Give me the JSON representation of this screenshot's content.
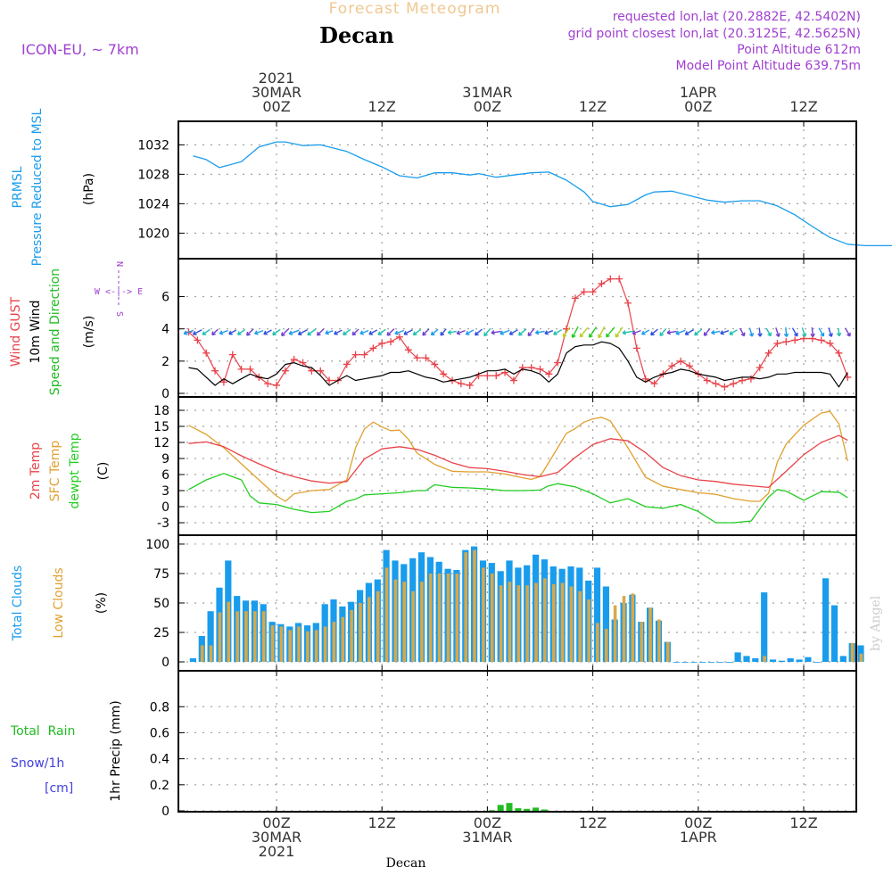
{
  "header": {
    "title": "Forecast Meteogram",
    "location": "Decan",
    "model": "ICON-EU, ~ 7km",
    "requested": "requested lon,lat (20.2882E, 42.5402N)",
    "grid_point": "grid point closest lon,lat (20.3125E, 42.5625N)",
    "point_altitude": "Point Altitude 612m",
    "model_altitude": "Model Point Altitude 639.75m",
    "footer_location": "Decan",
    "credit": "by Angel"
  },
  "time_axis": {
    "hour_offsets": [
      0,
      12,
      24,
      36,
      48,
      60
    ],
    "top_labels": [
      [
        "2021",
        "30MAR",
        "00Z"
      ],
      [
        "",
        "",
        "12Z"
      ],
      [
        "",
        "31MAR",
        "00Z"
      ],
      [
        "",
        "",
        "12Z"
      ],
      [
        "",
        "1APR",
        "00Z"
      ],
      [
        "",
        "",
        "12Z"
      ]
    ],
    "bottom_labels": [
      [
        "00Z",
        "30MAR",
        "2021"
      ],
      [
        "12Z",
        "",
        ""
      ],
      [
        "00Z",
        "31MAR",
        ""
      ],
      [
        "12Z",
        "",
        ""
      ],
      [
        "00Z",
        "1APR",
        ""
      ],
      [
        "12Z",
        "",
        ""
      ]
    ]
  },
  "panel_titles": {
    "pressure": [
      "PRMSL",
      "Pressure Reduced to MSL",
      "(hPa)"
    ],
    "wind": [
      "Wind GUST",
      "10m Wind",
      "Speed and Direction",
      "(m/s)"
    ],
    "compass": [
      "N",
      "W <-|-> E",
      "S"
    ],
    "temp": [
      "2m Temp",
      "SFC Temp",
      "dewpt Temp",
      "(C)"
    ],
    "clouds": [
      "Total Clouds",
      "Low Clouds",
      "(%)"
    ],
    "precip": [
      "Total  Rain",
      "Snow/1h",
      "[cm]",
      "1hr Precip (mm)"
    ]
  },
  "colors": {
    "pressure": "#1a9cec",
    "gust": "#e8434a",
    "wind": "#000000",
    "wind_dir": "#22bb22",
    "t2m": "#e8434a",
    "sfc": "#e0a030",
    "dewpt": "#22cc22",
    "total_clouds": "#1a9cec",
    "low_clouds": "#d8a848",
    "rain": "#22bb22",
    "snow": "#4040e0",
    "title_faint": "#f0c890",
    "purple": "#a040d0",
    "grid": "#a0a0a0"
  },
  "chart_data": [
    {
      "id": "pressure",
      "type": "line",
      "ylabel": "(hPa)",
      "yticks": [
        1020,
        1024,
        1028,
        1032
      ],
      "ylim": [
        1017.5,
        1033.5
      ],
      "series": [
        {
          "name": "PRMSL",
          "x": [
            -9.5,
            -8,
            -6.5,
            -4,
            -2,
            0,
            1,
            3,
            5,
            7,
            8,
            10,
            12,
            14,
            16,
            18,
            20,
            22,
            23,
            25,
            27,
            29,
            31,
            33,
            35,
            36,
            38,
            40,
            42,
            43,
            45,
            47,
            49,
            51,
            53,
            55,
            57,
            59,
            61,
            63,
            65,
            67,
            69,
            71,
            73,
            74
          ],
          "y": [
            1030.5,
            1030,
            1028.9,
            1029.7,
            1031.7,
            1032.4,
            1032.4,
            1031.9,
            1032,
            1031.4,
            1031.1,
            1030,
            1029,
            1027.8,
            1027.5,
            1028.2,
            1028.2,
            1027.9,
            1028.1,
            1027.6,
            1027.9,
            1028.2,
            1028.3,
            1027.2,
            1025.6,
            1024.3,
            1023.6,
            1023.9,
            1025.2,
            1025.6,
            1025.7,
            1025.1,
            1024.5,
            1024.2,
            1024.4,
            1024.4,
            1023.7,
            1022.5,
            1020.9,
            1019.4,
            1018.5,
            1018.3,
            1018.3,
            1018.3,
            1018.3,
            1018.4
          ]
        }
      ]
    },
    {
      "id": "wind",
      "type": "line",
      "ylabel": "(m/s)",
      "yticks": [
        0,
        2,
        4,
        6
      ],
      "ylim": [
        0,
        7.8
      ],
      "series": [
        {
          "name": "Wind GUST",
          "x": [
            -10,
            -9,
            -8,
            -7,
            -6,
            -5,
            -4,
            -3,
            -2,
            -1,
            0,
            1,
            2,
            3,
            4,
            5,
            6,
            7,
            8,
            9,
            10,
            11,
            12,
            13,
            14,
            15,
            16,
            17,
            18,
            19,
            20,
            21,
            22,
            23,
            24,
            25,
            26,
            27,
            28,
            29,
            30,
            31,
            32,
            33,
            34,
            35,
            36,
            37,
            38,
            39,
            40,
            41,
            42,
            43,
            44,
            45,
            46,
            47,
            48,
            49,
            50,
            51,
            52,
            53,
            54,
            55,
            56,
            57,
            58,
            59,
            60,
            61,
            62,
            63,
            64,
            65
          ],
          "y": [
            3.8,
            3.3,
            2.5,
            1.4,
            0.7,
            2.4,
            1.5,
            1.5,
            1,
            0.6,
            0.5,
            1.4,
            2.1,
            1.9,
            1.4,
            1.4,
            0.8,
            0.8,
            1.8,
            2.4,
            2.4,
            2.8,
            3.1,
            3.2,
            3.5,
            2.7,
            2.2,
            2.2,
            1.8,
            1.2,
            0.8,
            0.6,
            0.5,
            1.1,
            1.1,
            1.1,
            1.3,
            0.8,
            1.6,
            1.6,
            1.5,
            1.2,
            1.9,
            4,
            5.9,
            6.3,
            6.3,
            6.8,
            7.1,
            7.1,
            5.6,
            2.8,
            0.9,
            0.6,
            1.2,
            1.7,
            2,
            1.7,
            1.2,
            0.8,
            0.6,
            0.4,
            0.6,
            0.8,
            0.9,
            1.6,
            2.5,
            3.1,
            3.2,
            3.3,
            3.4,
            3.4,
            3.3,
            3.1,
            2.5,
            1
          ]
        },
        {
          "name": "10m Wind",
          "x": [
            -10,
            -9,
            -8,
            -7,
            -6,
            -5,
            -4,
            -3,
            -2,
            -1,
            0,
            1,
            2,
            3,
            4,
            5,
            6,
            7,
            8,
            9,
            10,
            11,
            12,
            13,
            14,
            15,
            16,
            17,
            18,
            19,
            20,
            21,
            22,
            23,
            24,
            25,
            26,
            27,
            28,
            29,
            30,
            31,
            32,
            33,
            34,
            35,
            36,
            37,
            38,
            39,
            40,
            41,
            42,
            43,
            44,
            45,
            46,
            47,
            48,
            49,
            50,
            51,
            52,
            53,
            54,
            55,
            56,
            57,
            58,
            59,
            60,
            61,
            62,
            63,
            64,
            65
          ],
          "y": [
            1.6,
            1.5,
            1,
            0.5,
            0.9,
            0.6,
            0.9,
            1.2,
            1,
            0.9,
            1.2,
            1.8,
            1.9,
            1.7,
            1.6,
            1.1,
            0.5,
            0.8,
            1.1,
            0.8,
            0.9,
            1,
            1.1,
            1.3,
            1.3,
            1.4,
            1.2,
            1,
            0.9,
            0.7,
            0.8,
            0.9,
            1,
            1.2,
            1.4,
            1.4,
            1.5,
            1.2,
            1.5,
            1.4,
            1.2,
            0.7,
            1.2,
            2.5,
            2.9,
            3,
            3,
            3.2,
            3.1,
            2.8,
            2,
            1,
            0.7,
            1,
            1.2,
            1.3,
            1.5,
            1.4,
            1.2,
            1.1,
            1,
            0.8,
            0.9,
            1,
            1,
            0.9,
            1,
            1.2,
            1.2,
            1.3,
            1.3,
            1.3,
            1.3,
            1.2,
            0.4,
            1.3
          ]
        }
      ]
    },
    {
      "id": "temp",
      "type": "line",
      "ylabel": "(C)",
      "yticks": [
        -3,
        0,
        3,
        6,
        9,
        12,
        15,
        18
      ],
      "ylim": [
        -4,
        19
      ],
      "series": [
        {
          "name": "2m Temp",
          "x": [
            -10,
            -8,
            -6,
            -4,
            -2,
            0,
            2,
            4,
            6,
            8,
            10,
            12,
            14,
            16,
            18,
            20,
            22,
            24,
            26,
            28,
            30,
            32,
            34,
            36,
            38,
            40,
            42,
            44,
            46,
            48,
            50,
            52,
            54,
            56,
            58,
            60,
            62,
            64,
            65
          ],
          "y": [
            11.8,
            12.1,
            11.2,
            9.5,
            8,
            6.6,
            5.6,
            4.8,
            4.4,
            4.7,
            8.9,
            10.8,
            11.2,
            10.7,
            9.6,
            8.2,
            7.3,
            7.1,
            6.6,
            6,
            5.6,
            6.4,
            9.2,
            11.6,
            12.7,
            12.3,
            10.1,
            7.3,
            5.8,
            5,
            4.7,
            4.2,
            3.9,
            3.6,
            6.6,
            9.7,
            12,
            13.3,
            12.4
          ]
        },
        {
          "name": "SFC Temp",
          "x": [
            -10,
            -8,
            -6,
            -4,
            -2,
            0,
            1,
            2,
            4,
            6,
            8,
            9,
            10,
            11,
            12,
            13,
            14,
            15,
            16,
            18,
            20,
            22,
            24,
            26,
            28,
            29,
            30,
            32,
            33,
            34,
            35,
            36,
            37,
            38,
            40,
            42,
            44,
            46,
            48,
            50,
            52,
            54,
            55,
            56,
            57,
            58,
            60,
            62,
            63,
            64,
            65
          ],
          "y": [
            15.2,
            13.5,
            11,
            8,
            5,
            2,
            1,
            2.4,
            3,
            3.2,
            5,
            11,
            14.5,
            15.8,
            14.9,
            14.2,
            14.3,
            12.6,
            10,
            7.9,
            6.6,
            6.5,
            6.5,
            6.1,
            5.4,
            5.1,
            5.6,
            11,
            13.7,
            14.6,
            15.8,
            16.4,
            16.7,
            16,
            11,
            5.5,
            3.8,
            3.2,
            2.6,
            2.3,
            1.5,
            1,
            1,
            2.5,
            8.3,
            11.7,
            15.2,
            17.5,
            17.8,
            15.5,
            8.5
          ]
        },
        {
          "name": "dewpt Temp",
          "x": [
            -10,
            -8,
            -6,
            -4,
            -3,
            -2,
            0,
            2,
            4,
            6,
            8,
            9,
            10,
            12,
            14,
            16,
            17,
            18,
            20,
            22,
            24,
            26,
            28,
            30,
            31,
            32,
            34,
            36,
            38,
            40,
            42,
            44,
            46,
            48,
            50,
            52,
            54,
            56,
            57,
            58,
            60,
            62,
            64,
            65
          ],
          "y": [
            3.2,
            5,
            6.2,
            5,
            2,
            0.7,
            0.4,
            -0.5,
            -1.1,
            -0.9,
            1,
            1.4,
            2.2,
            2.4,
            2.6,
            3,
            3,
            4.1,
            3.6,
            3.5,
            3.3,
            3,
            3,
            3.1,
            3.9,
            4.3,
            3.7,
            2.4,
            0.7,
            1.5,
            0,
            -0.3,
            0.4,
            -0.9,
            -3,
            -3,
            -2.7,
            1.8,
            3.2,
            2.9,
            1.2,
            2.8,
            2.7,
            1.7
          ]
        }
      ]
    },
    {
      "id": "clouds",
      "type": "bar",
      "ylabel": "(%)",
      "yticks": [
        0,
        25,
        50,
        75,
        100
      ],
      "ylim": [
        0,
        103
      ],
      "start_hour": -9.5,
      "step_hours": 1,
      "series": [
        {
          "name": "Total Clouds",
          "values": [
            3,
            22,
            43,
            63,
            86,
            56,
            52,
            52,
            49,
            34,
            32,
            30,
            33,
            31,
            33,
            49,
            53,
            47,
            51,
            61,
            67,
            70,
            95,
            86,
            83,
            88,
            93,
            89,
            85,
            79,
            78,
            95,
            98,
            86,
            84,
            77,
            86,
            80,
            82,
            91,
            87,
            81,
            79,
            81,
            80,
            69,
            80,
            64,
            36,
            50,
            57,
            34,
            46,
            35,
            17,
            0,
            0,
            0,
            0,
            0,
            0,
            0,
            8,
            5,
            3,
            59,
            2,
            1,
            3,
            2,
            4,
            0,
            71,
            48,
            5,
            16,
            14
          ]
        },
        {
          "name": "Low Clouds",
          "values": [
            0,
            14,
            14,
            42,
            51,
            43,
            43,
            43,
            43,
            31,
            30,
            27,
            30,
            26,
            27,
            30,
            34,
            38,
            44,
            50,
            55,
            60,
            80,
            70,
            68,
            60,
            68,
            75,
            75,
            75,
            75,
            93,
            95,
            80,
            75,
            65,
            68,
            65,
            65,
            67,
            71,
            66,
            67,
            64,
            60,
            53,
            33,
            28,
            48,
            56,
            58,
            34,
            46,
            36,
            17,
            0,
            0,
            0,
            0,
            0,
            0,
            0,
            0,
            0,
            0,
            5,
            0,
            0,
            0,
            0,
            0,
            0,
            0,
            0,
            0,
            16,
            7
          ]
        }
      ]
    },
    {
      "id": "precip",
      "type": "bar",
      "ylabel": "1hr Precip (mm)",
      "yticks": [
        0,
        0.2,
        0.4,
        0.6,
        0.8
      ],
      "ylim": [
        0,
        0.98
      ],
      "series": [
        {
          "name": "Total Rain",
          "x": [
            24.5,
            25.5,
            26.5,
            27.5,
            28.5,
            29.5,
            30.5
          ],
          "values": [
            0.005,
            0.045,
            0.06,
            0.02,
            0.015,
            0.025,
            0.01
          ]
        },
        {
          "name": "Snow/1h",
          "x": [],
          "values": []
        }
      ]
    }
  ]
}
